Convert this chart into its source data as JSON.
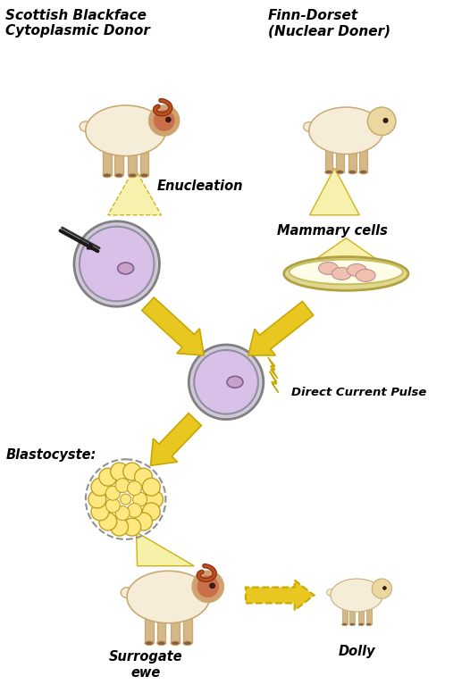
{
  "bg_color": "#ffffff",
  "labels": {
    "left_sheep": "Scottish Blackface\nCytoplasmic Donor",
    "right_sheep": "Finn-Dorset\n(Nuclear Doner)",
    "enucleation": "Enucleation",
    "mammary": "Mammary cells",
    "direct_current": "Direct Current Pulse",
    "blastocyste": "Blastocyste:",
    "surrogate": "Surrogate\newe",
    "dolly": "Dolly"
  },
  "arrow_color": "#E8C820",
  "arrow_outline": "#C8A800",
  "cell_fill": "#D8C0E8",
  "cell_outline": "#909090",
  "nucleus_fill": "#C8A0C8",
  "text_color": "#000000",
  "sheep_body": "#F5EDD8",
  "sheep_outline": "#C8A870",
  "sheep_legs": "#D4B888"
}
